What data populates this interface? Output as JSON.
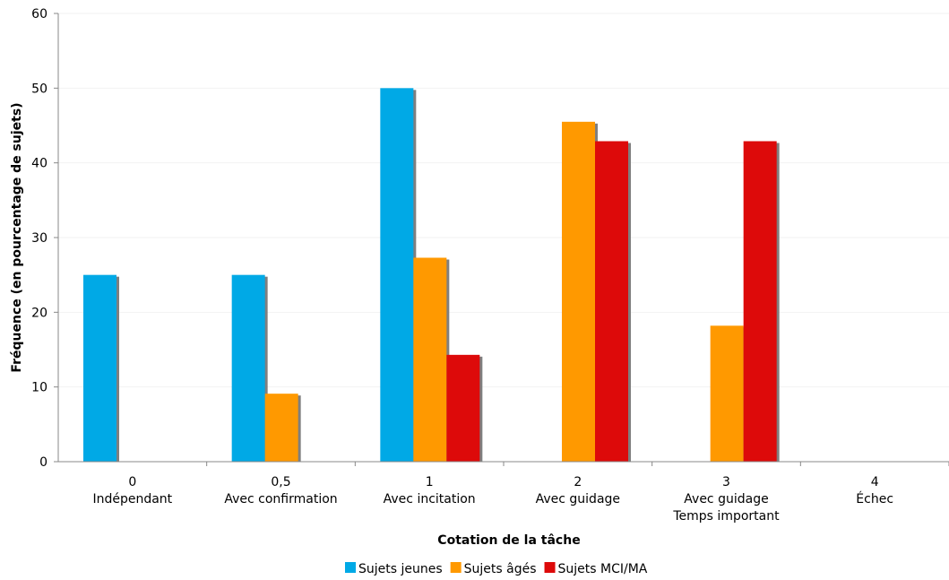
{
  "chart_data": {
    "type": "bar",
    "title": "",
    "xlabel": "Cotation de la tâche",
    "ylabel": "Fréquence (en pourcentage de sujets)",
    "ylim": [
      0,
      60
    ],
    "yticks": [
      "0",
      "10",
      "20",
      "30",
      "40",
      "50",
      "60"
    ],
    "grid": true,
    "legend_position": "bottom",
    "categories": [
      [
        "0",
        "Indépendant"
      ],
      [
        "0,5",
        "Avec confirmation"
      ],
      [
        "1",
        "Avec incitation"
      ],
      [
        "2",
        "Avec guidage"
      ],
      [
        "3",
        "Avec guidage",
        "Temps important"
      ],
      [
        "4",
        "Échec"
      ]
    ],
    "series": [
      {
        "name": "Sujets jeunes",
        "color": "#00a9e6",
        "values": [
          25,
          25,
          50,
          0,
          0,
          0
        ]
      },
      {
        "name": "Sujets âgés",
        "color": "#ff9900",
        "values": [
          0,
          9.1,
          27.3,
          45.5,
          18.2,
          0
        ]
      },
      {
        "name": "Sujets MCI/MA",
        "color": "#dd0a0a",
        "values": [
          0,
          0,
          14.3,
          42.9,
          42.9,
          0
        ]
      }
    ],
    "shadow_color": "#7f7f7f"
  }
}
